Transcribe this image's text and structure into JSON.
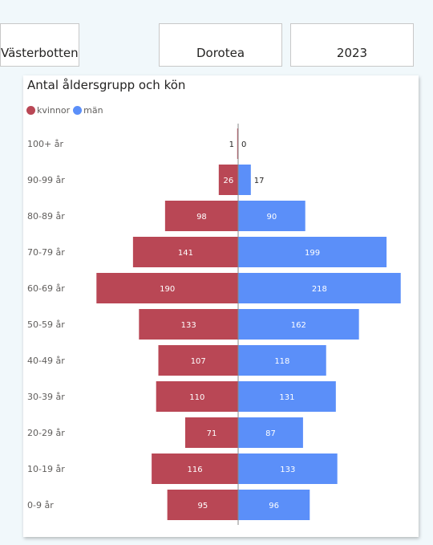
{
  "filters": {
    "region": "Västerbotten",
    "municipality": "Dorotea",
    "year": "2023"
  },
  "colors": {
    "women": "#b94755",
    "men": "#5b8ff9",
    "axis_line": "#8a8a8a",
    "label_text": "#605e5c"
  },
  "chart_data": {
    "type": "bar",
    "orientation": "horizontal-diverging",
    "title": "Antal åldersgrupp och kön",
    "legend_position": "top-left",
    "categories": [
      "100+ år",
      "90-99 år",
      "80-89 år",
      "70-79 år",
      "60-69 år",
      "50-59 år",
      "40-49 år",
      "30-39 år",
      "20-29 år",
      "10-19 år",
      "0-9 år"
    ],
    "series": [
      {
        "name": "kvinnor",
        "side": "left",
        "values": [
          1,
          26,
          98,
          141,
          190,
          133,
          107,
          110,
          71,
          116,
          95
        ]
      },
      {
        "name": "män",
        "side": "right",
        "values": [
          0,
          17,
          90,
          199,
          218,
          162,
          118,
          131,
          87,
          133,
          96
        ]
      }
    ],
    "grid": false
  }
}
